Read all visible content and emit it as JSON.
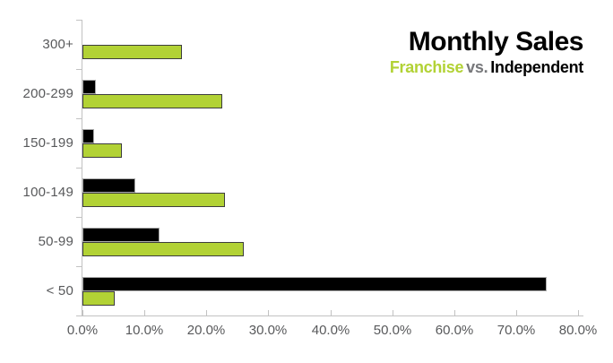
{
  "title": {
    "main": "Monthly Sales",
    "sub_franchise": "Franchise",
    "sub_vs": "vs.",
    "sub_independent": "Independent"
  },
  "colors": {
    "franchise_green": "#b2d235",
    "independent_black": "#000000",
    "axis_gray": "#c2c2c2",
    "label_gray": "#58595b",
    "vs_gray": "#77787b"
  },
  "chart_data": {
    "type": "bar",
    "orientation": "horizontal",
    "title": "Monthly Sales",
    "subtitle": "Franchise vs. Independent",
    "categories": [
      "300+",
      "200-299",
      "150-199",
      "100-149",
      "50-99",
      "< 50"
    ],
    "series": [
      {
        "name": "Independent",
        "color": "#000000",
        "values": [
          0,
          2.2,
          1.9,
          8.5,
          12.5,
          75
        ]
      },
      {
        "name": "Franchise",
        "color": "#b2d235",
        "values": [
          16,
          22.5,
          6.3,
          23,
          26,
          5.2
        ]
      }
    ],
    "x_tick_labels": [
      "0.0%",
      "10.0%",
      "20.0%",
      "30.0%",
      "40.0%",
      "50.0%",
      "60.0%",
      "70.0%",
      "80.0%"
    ],
    "xlim": [
      0,
      80
    ],
    "grid": false,
    "legend_position": "top-right"
  }
}
